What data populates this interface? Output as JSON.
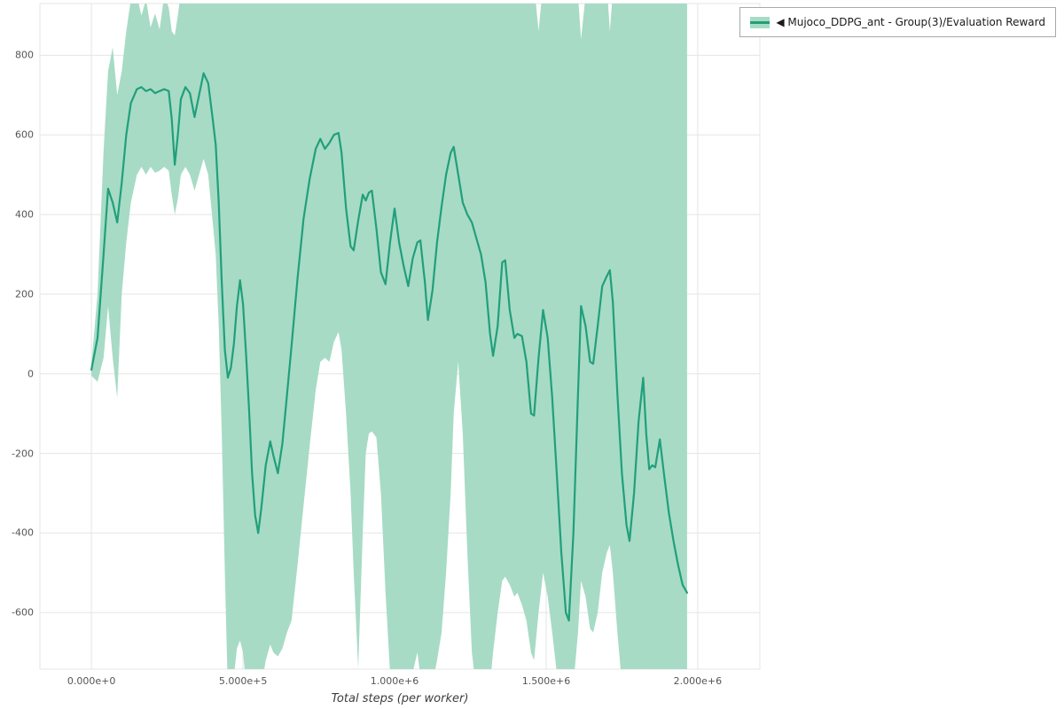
{
  "legend": {
    "label": "◀ Mujoco_DDPG_ant - Group(3)/Evaluation Reward"
  },
  "axes": {
    "x_title": "Total steps (per worker)"
  },
  "colors": {
    "line": "#219f7b",
    "band": "#a7dbc6",
    "grid": "#e5e5e5",
    "tick_text": "#555555"
  },
  "chart_data": {
    "type": "line",
    "title": "",
    "xlabel": "Total steps (per worker)",
    "ylabel": "",
    "series_name": "Mujoco_DDPG_ant - Group(3)/Evaluation Reward",
    "legend_position": "top-right",
    "grid": true,
    "xlim": [
      -170000,
      2205000
    ],
    "ylim": [
      -742,
      930
    ],
    "x_ticks": {
      "values": [
        0,
        500000,
        1000000,
        1500000,
        2000000
      ],
      "labels": [
        "0.000e+0",
        "5.000e+5",
        "1.000e+6",
        "1.500e+6",
        "2.000e+6"
      ]
    },
    "y_ticks": {
      "values": [
        800,
        600,
        400,
        200,
        0,
        -200,
        -400,
        -600
      ],
      "labels": [
        "800",
        "600",
        "400",
        "200",
        "0",
        "-200",
        "-400",
        "-600"
      ]
    },
    "x": [
      0,
      20000,
      40000,
      55000,
      70000,
      85000,
      100000,
      115000,
      130000,
      150000,
      165000,
      180000,
      195000,
      210000,
      225000,
      240000,
      255000,
      265000,
      275000,
      285000,
      295000,
      310000,
      325000,
      340000,
      355000,
      370000,
      385000,
      400000,
      410000,
      420000,
      430000,
      440000,
      450000,
      460000,
      470000,
      480000,
      490000,
      500000,
      510000,
      520000,
      530000,
      540000,
      550000,
      560000,
      575000,
      590000,
      600000,
      615000,
      630000,
      645000,
      660000,
      680000,
      700000,
      720000,
      740000,
      755000,
      770000,
      785000,
      800000,
      815000,
      825000,
      840000,
      855000,
      865000,
      880000,
      895000,
      905000,
      915000,
      925000,
      940000,
      955000,
      970000,
      985000,
      1000000,
      1015000,
      1030000,
      1045000,
      1060000,
      1075000,
      1085000,
      1100000,
      1110000,
      1125000,
      1140000,
      1155000,
      1170000,
      1185000,
      1195000,
      1210000,
      1225000,
      1240000,
      1255000,
      1270000,
      1285000,
      1300000,
      1315000,
      1325000,
      1340000,
      1355000,
      1365000,
      1380000,
      1395000,
      1405000,
      1420000,
      1435000,
      1450000,
      1460000,
      1475000,
      1490000,
      1505000,
      1520000,
      1535000,
      1550000,
      1565000,
      1575000,
      1590000,
      1605000,
      1615000,
      1630000,
      1645000,
      1655000,
      1670000,
      1685000,
      1700000,
      1710000,
      1720000,
      1735000,
      1750000,
      1765000,
      1775000,
      1790000,
      1805000,
      1820000,
      1830000,
      1840000,
      1850000,
      1860000,
      1875000,
      1890000,
      1905000,
      1920000,
      1935000,
      1950000,
      1965000
    ],
    "mean": [
      10,
      90,
      300,
      465,
      430,
      380,
      480,
      600,
      680,
      715,
      720,
      710,
      715,
      705,
      710,
      715,
      710,
      640,
      525,
      600,
      690,
      720,
      705,
      645,
      700,
      755,
      730,
      640,
      575,
      430,
      230,
      60,
      -10,
      15,
      75,
      170,
      235,
      175,
      50,
      -90,
      -250,
      -355,
      -400,
      -340,
      -230,
      -170,
      -205,
      -250,
      -175,
      -55,
      70,
      240,
      390,
      490,
      565,
      590,
      565,
      580,
      600,
      605,
      555,
      415,
      320,
      310,
      385,
      450,
      435,
      455,
      460,
      365,
      255,
      225,
      330,
      415,
      330,
      270,
      220,
      290,
      330,
      335,
      230,
      135,
      210,
      330,
      420,
      500,
      555,
      570,
      500,
      430,
      400,
      380,
      340,
      300,
      230,
      100,
      45,
      120,
      280,
      285,
      160,
      90,
      100,
      95,
      30,
      -100,
      -105,
      40,
      160,
      90,
      -60,
      -250,
      -450,
      -600,
      -620,
      -400,
      -50,
      170,
      120,
      30,
      25,
      120,
      220,
      245,
      260,
      180,
      -50,
      -250,
      -380,
      -420,
      -300,
      -120,
      -10,
      -150,
      -240,
      -230,
      -235,
      -165,
      -260,
      -350,
      -420,
      -480,
      -530,
      -550
    ],
    "band_upper": [
      25,
      200,
      560,
      760,
      820,
      700,
      760,
      860,
      940,
      950,
      900,
      940,
      870,
      905,
      865,
      950,
      920,
      860,
      850,
      900,
      960,
      980,
      1000,
      990,
      1000,
      1020,
      1010,
      1000,
      1000,
      1000,
      1000,
      1000,
      1000,
      1000,
      1000,
      1000,
      1000,
      1000,
      1000,
      1000,
      1000,
      1000,
      1000,
      1000,
      1000,
      1000,
      1000,
      1000,
      1000,
      1000,
      1000,
      1000,
      1000,
      1000,
      1000,
      1000,
      1000,
      1000,
      1000,
      1000,
      1000,
      1000,
      1000,
      1000,
      1000,
      1000,
      1000,
      1000,
      1000,
      1000,
      1000,
      1000,
      1000,
      1000,
      1000,
      1000,
      1000,
      1000,
      1000,
      1000,
      1000,
      1000,
      1000,
      1000,
      1000,
      1000,
      1000,
      1000,
      1000,
      1000,
      1000,
      1000,
      1000,
      1000,
      1000,
      1000,
      1000,
      1000,
      1000,
      1000,
      1000,
      1000,
      1000,
      1000,
      1000,
      1000,
      980,
      860,
      980,
      1000,
      1000,
      1000,
      1000,
      1000,
      1000,
      1000,
      950,
      840,
      950,
      1000,
      1000,
      1000,
      1000,
      980,
      860,
      960,
      1000,
      1000,
      1000,
      1000,
      1000,
      1000,
      1000,
      1000,
      1000,
      1000,
      1000,
      1000,
      1000,
      1000,
      1000,
      1000,
      1000,
      1000
    ],
    "band_lower": [
      -5,
      -20,
      40,
      170,
      40,
      -60,
      200,
      330,
      430,
      500,
      520,
      500,
      520,
      505,
      510,
      520,
      510,
      450,
      400,
      440,
      500,
      520,
      500,
      460,
      500,
      540,
      500,
      380,
      300,
      120,
      -150,
      -500,
      -800,
      -780,
      -760,
      -690,
      -670,
      -700,
      -780,
      -800,
      -800,
      -800,
      -800,
      -790,
      -720,
      -680,
      -700,
      -710,
      -690,
      -650,
      -620,
      -480,
      -330,
      -180,
      -40,
      30,
      40,
      30,
      80,
      105,
      60,
      -100,
      -300,
      -500,
      -740,
      -400,
      -200,
      -150,
      -145,
      -160,
      -300,
      -550,
      -750,
      -780,
      -800,
      -800,
      -800,
      -750,
      -700,
      -760,
      -800,
      -800,
      -780,
      -720,
      -650,
      -500,
      -300,
      -100,
      30,
      -150,
      -450,
      -700,
      -800,
      -800,
      -800,
      -780,
      -700,
      -600,
      -520,
      -510,
      -530,
      -560,
      -550,
      -580,
      -620,
      -700,
      -720,
      -600,
      -500,
      -560,
      -650,
      -750,
      -800,
      -800,
      -800,
      -780,
      -650,
      -520,
      -560,
      -640,
      -650,
      -600,
      -500,
      -450,
      -430,
      -500,
      -650,
      -780,
      -800,
      -800,
      -800,
      -780,
      -740,
      -760,
      -800,
      -800,
      -800,
      -780,
      -800,
      -800,
      -800,
      -800,
      -800,
      -800
    ]
  }
}
